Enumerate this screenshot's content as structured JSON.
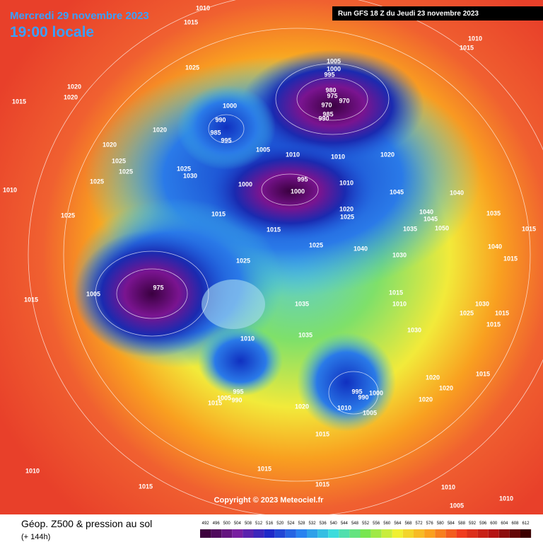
{
  "header": {
    "date": "Mercredi 29 novembre 2023",
    "time": "19:00 locale",
    "run": "Run GFS 18 Z du Jeudi 23 novembre 2023"
  },
  "copyright": "Copyright © 2023 Meteociel.fr",
  "footer": {
    "title": "Géop. Z500 & pression au sol",
    "lead": "(+ 144h)"
  },
  "legend": {
    "scale": [
      492,
      496,
      500,
      504,
      508,
      512,
      516,
      520,
      524,
      528,
      532,
      536,
      540,
      544,
      548,
      552,
      556,
      560,
      564,
      568,
      572,
      576,
      580,
      584,
      588,
      592,
      596,
      600,
      604,
      608,
      612
    ]
  },
  "pressure_labels": [
    1010,
    1015,
    1010,
    1015,
    1025,
    1005,
    1000,
    995,
    1020,
    1020,
    1015,
    980,
    975,
    970,
    970,
    1000,
    985,
    990,
    990,
    985,
    995,
    1020,
    1020,
    1005,
    1010,
    1010,
    1020,
    1025,
    1025,
    1025,
    1030,
    1025,
    995,
    1000,
    1010,
    1000,
    1045,
    1040,
    1010,
    1020,
    1025,
    1040,
    1045,
    1035,
    1025,
    1015,
    1015,
    1050,
    1035,
    1015,
    1025,
    1040,
    1030,
    1040,
    1015,
    1025,
    975,
    1005,
    1015,
    1015,
    1010,
    1035,
    1030,
    1025,
    1015,
    1015,
    1030,
    1035,
    1010,
    1020,
    1015,
    1020,
    995,
    1000,
    995,
    990,
    1020,
    1005,
    990,
    1015,
    1020,
    1010,
    1005,
    1015,
    1010,
    1015,
    1015,
    1015,
    1010,
    1010,
    1005
  ]
}
